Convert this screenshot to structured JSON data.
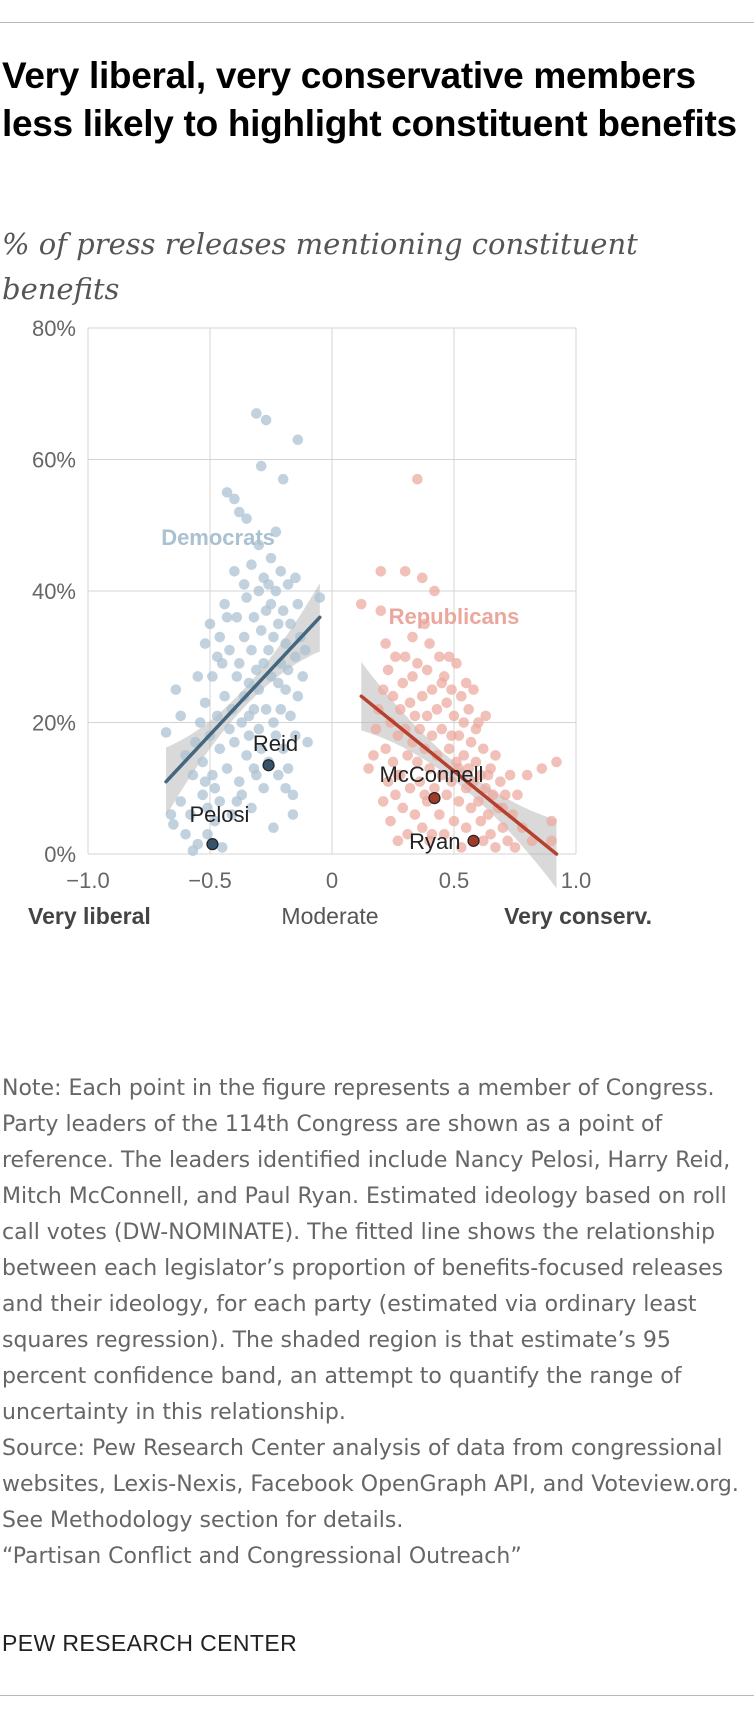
{
  "title": "Very liberal, very conservative members less likely to highlight constituent benefits",
  "subtitle": "% of press releases mentioning constituent benefits",
  "chart_data": {
    "type": "scatter",
    "title": "Very liberal, very conservative members less likely to highlight constituent benefits",
    "ylabel": "% of press releases mentioning constituent benefits",
    "xlabel": "",
    "xlim": [
      -1.0,
      1.0
    ],
    "ylim": [
      0,
      80
    ],
    "x_ticks": [
      -1.0,
      -0.5,
      0,
      0.5,
      1.0
    ],
    "x_tick_labels": [
      "−1.0",
      "−0.5",
      "0",
      "0.5",
      "1.0"
    ],
    "y_ticks": [
      0,
      20,
      40,
      60,
      80
    ],
    "y_tick_labels": [
      "0%",
      "20%",
      "40%",
      "60%",
      "80%"
    ],
    "axis_anchor_labels": {
      "left": "Very liberal",
      "center": "Moderate",
      "right": "Very conserv."
    },
    "grid": true,
    "colors": {
      "dem_points": "#a9c1d1",
      "dem_line": "#44677f",
      "rep_points": "#eba79d",
      "rep_line": "#b5412e",
      "band": "#b4b4b4",
      "leader_dem": "#35536a",
      "leader_rep": "#a23a2a"
    },
    "series": [
      {
        "name": "Democrats",
        "label_pos": [
          -0.7,
          47
        ],
        "points": [
          [
            -0.68,
            18.5
          ],
          [
            -0.66,
            6
          ],
          [
            -0.65,
            4.5
          ],
          [
            -0.64,
            25
          ],
          [
            -0.62,
            8
          ],
          [
            -0.6,
            15
          ],
          [
            -0.6,
            3
          ],
          [
            -0.58,
            6
          ],
          [
            -0.57,
            12
          ],
          [
            -0.56,
            17
          ],
          [
            -0.55,
            27
          ],
          [
            -0.55,
            1.5
          ],
          [
            -0.54,
            20
          ],
          [
            -0.53,
            9
          ],
          [
            -0.53,
            14
          ],
          [
            -0.52,
            32
          ],
          [
            -0.52,
            23
          ],
          [
            -0.51,
            7
          ],
          [
            -0.51,
            3
          ],
          [
            -0.5,
            35
          ],
          [
            -0.5,
            18
          ],
          [
            -0.49,
            27
          ],
          [
            -0.49,
            12
          ],
          [
            -0.48,
            10
          ],
          [
            -0.48,
            5
          ],
          [
            -0.47,
            30
          ],
          [
            -0.47,
            21
          ],
          [
            -0.46,
            16
          ],
          [
            -0.46,
            8
          ],
          [
            -0.45,
            1
          ],
          [
            -0.45,
            29
          ],
          [
            -0.44,
            24
          ],
          [
            -0.44,
            38
          ],
          [
            -0.43,
            55
          ],
          [
            -0.43,
            13
          ],
          [
            -0.42,
            31
          ],
          [
            -0.42,
            19
          ],
          [
            -0.41,
            22
          ],
          [
            -0.41,
            6
          ],
          [
            -0.4,
            54
          ],
          [
            -0.4,
            43
          ],
          [
            -0.4,
            17
          ],
          [
            -0.39,
            36
          ],
          [
            -0.39,
            27
          ],
          [
            -0.38,
            11
          ],
          [
            -0.38,
            52
          ],
          [
            -0.38,
            29
          ],
          [
            -0.37,
            20
          ],
          [
            -0.37,
            9
          ],
          [
            -0.36,
            41
          ],
          [
            -0.36,
            24
          ],
          [
            -0.36,
            33
          ],
          [
            -0.35,
            15
          ],
          [
            -0.35,
            51
          ],
          [
            -0.35,
            39
          ],
          [
            -0.34,
            26
          ],
          [
            -0.34,
            18
          ],
          [
            -0.33,
            44
          ],
          [
            -0.33,
            31
          ],
          [
            -0.33,
            7
          ],
          [
            -0.32,
            22
          ],
          [
            -0.32,
            36
          ],
          [
            -0.32,
            13
          ],
          [
            -0.31,
            67
          ],
          [
            -0.31,
            28
          ],
          [
            -0.3,
            47
          ],
          [
            -0.3,
            40
          ],
          [
            -0.3,
            19
          ],
          [
            -0.3,
            25
          ],
          [
            -0.29,
            59
          ],
          [
            -0.29,
            34
          ],
          [
            -0.29,
            16
          ],
          [
            -0.28,
            42
          ],
          [
            -0.28,
            29
          ],
          [
            -0.28,
            10
          ],
          [
            -0.27,
            66
          ],
          [
            -0.27,
            37
          ],
          [
            -0.27,
            22
          ],
          [
            -0.26,
            31
          ],
          [
            -0.26,
            14
          ],
          [
            -0.25,
            45
          ],
          [
            -0.25,
            27
          ],
          [
            -0.25,
            38
          ],
          [
            -0.24,
            33
          ],
          [
            -0.24,
            20
          ],
          [
            -0.24,
            4
          ],
          [
            -0.23,
            49
          ],
          [
            -0.23,
            40
          ],
          [
            -0.23,
            18
          ],
          [
            -0.22,
            26
          ],
          [
            -0.22,
            35
          ],
          [
            -0.22,
            12
          ],
          [
            -0.21,
            43
          ],
          [
            -0.21,
            29
          ],
          [
            -0.21,
            22
          ],
          [
            -0.2,
            57
          ],
          [
            -0.2,
            37
          ],
          [
            -0.2,
            16
          ],
          [
            -0.19,
            32
          ],
          [
            -0.19,
            25
          ],
          [
            -0.18,
            41
          ],
          [
            -0.18,
            28
          ],
          [
            -0.18,
            13
          ],
          [
            -0.17,
            35
          ],
          [
            -0.17,
            21
          ],
          [
            -0.16,
            9
          ],
          [
            -0.15,
            42
          ],
          [
            -0.15,
            30
          ],
          [
            -0.15,
            18
          ],
          [
            -0.14,
            63
          ],
          [
            -0.14,
            38
          ],
          [
            -0.14,
            24
          ],
          [
            -0.13,
            33
          ],
          [
            -0.12,
            27
          ],
          [
            -0.11,
            31
          ],
          [
            -0.1,
            17
          ],
          [
            -0.05,
            39
          ],
          [
            -0.57,
            0.5
          ],
          [
            -0.52,
            11
          ],
          [
            -0.62,
            21
          ],
          [
            -0.46,
            33
          ],
          [
            -0.34,
            21
          ],
          [
            -0.26,
            41
          ],
          [
            -0.19,
            10
          ],
          [
            -0.39,
            8
          ],
          [
            -0.31,
            12
          ],
          [
            -0.43,
            36
          ],
          [
            -0.16,
            6
          ]
        ],
        "fit": {
          "x": [
            -0.68,
            -0.05
          ],
          "y": [
            11,
            36
          ]
        },
        "leader": {
          "name": "Pelosi",
          "x": -0.49,
          "y": 1.5
        }
      },
      {
        "name": "Republicans",
        "label_pos": [
          0.5,
          35
        ],
        "points": [
          [
            0.12,
            38
          ],
          [
            0.15,
            13
          ],
          [
            0.17,
            15
          ],
          [
            0.18,
            19
          ],
          [
            0.19,
            22
          ],
          [
            0.2,
            43
          ],
          [
            0.2,
            37
          ],
          [
            0.21,
            8
          ],
          [
            0.21,
            25
          ],
          [
            0.22,
            32
          ],
          [
            0.22,
            16
          ],
          [
            0.23,
            11
          ],
          [
            0.23,
            28
          ],
          [
            0.24,
            20
          ],
          [
            0.24,
            5
          ],
          [
            0.25,
            24
          ],
          [
            0.25,
            14
          ],
          [
            0.26,
            9
          ],
          [
            0.26,
            30
          ],
          [
            0.27,
            18
          ],
          [
            0.27,
            2
          ],
          [
            0.28,
            22
          ],
          [
            0.28,
            12
          ],
          [
            0.29,
            26
          ],
          [
            0.29,
            7
          ],
          [
            0.3,
            43
          ],
          [
            0.3,
            19
          ],
          [
            0.3,
            30
          ],
          [
            0.31,
            15
          ],
          [
            0.31,
            3
          ],
          [
            0.32,
            23
          ],
          [
            0.32,
            10
          ],
          [
            0.33,
            27
          ],
          [
            0.33,
            17
          ],
          [
            0.34,
            6
          ],
          [
            0.34,
            21
          ],
          [
            0.35,
            57
          ],
          [
            0.35,
            14
          ],
          [
            0.35,
            29
          ],
          [
            0.36,
            11
          ],
          [
            0.36,
            19
          ],
          [
            0.37,
            42
          ],
          [
            0.37,
            24
          ],
          [
            0.37,
            4
          ],
          [
            0.38,
            35
          ],
          [
            0.38,
            16
          ],
          [
            0.38,
            9
          ],
          [
            0.39,
            28
          ],
          [
            0.39,
            21
          ],
          [
            0.4,
            13
          ],
          [
            0.4,
            32
          ],
          [
            0.4,
            2
          ],
          [
            0.41,
            18
          ],
          [
            0.41,
            25
          ],
          [
            0.42,
            10
          ],
          [
            0.42,
            40
          ],
          [
            0.43,
            22
          ],
          [
            0.43,
            15
          ],
          [
            0.44,
            30
          ],
          [
            0.44,
            6
          ],
          [
            0.45,
            19
          ],
          [
            0.45,
            12
          ],
          [
            0.46,
            27
          ],
          [
            0.46,
            3
          ],
          [
            0.47,
            23
          ],
          [
            0.47,
            9
          ],
          [
            0.48,
            30
          ],
          [
            0.48,
            16
          ],
          [
            0.49,
            25
          ],
          [
            0.49,
            11
          ],
          [
            0.5,
            21
          ],
          [
            0.5,
            5
          ],
          [
            0.51,
            29
          ],
          [
            0.51,
            14
          ],
          [
            0.52,
            18
          ],
          [
            0.52,
            8
          ],
          [
            0.53,
            24
          ],
          [
            0.53,
            1
          ],
          [
            0.54,
            15
          ],
          [
            0.54,
            20
          ],
          [
            0.55,
            10
          ],
          [
            0.55,
            4
          ],
          [
            0.56,
            22
          ],
          [
            0.56,
            13
          ],
          [
            0.57,
            17
          ],
          [
            0.57,
            7
          ],
          [
            0.58,
            11
          ],
          [
            0.58,
            2
          ],
          [
            0.59,
            19
          ],
          [
            0.59,
            14
          ],
          [
            0.6,
            8
          ],
          [
            0.6,
            20
          ],
          [
            0.61,
            5
          ],
          [
            0.61,
            12
          ],
          [
            0.62,
            16
          ],
          [
            0.62,
            2
          ],
          [
            0.63,
            10
          ],
          [
            0.63,
            21
          ],
          [
            0.64,
            6
          ],
          [
            0.65,
            13
          ],
          [
            0.65,
            3
          ],
          [
            0.66,
            9
          ],
          [
            0.67,
            15
          ],
          [
            0.67,
            1
          ],
          [
            0.68,
            7
          ],
          [
            0.69,
            11
          ],
          [
            0.7,
            4
          ],
          [
            0.71,
            9
          ],
          [
            0.72,
            2
          ],
          [
            0.73,
            12
          ],
          [
            0.74,
            6
          ],
          [
            0.75,
            1
          ],
          [
            0.76,
            9
          ],
          [
            0.78,
            4
          ],
          [
            0.8,
            12
          ],
          [
            0.82,
            2
          ],
          [
            0.86,
            13
          ],
          [
            0.9,
            5
          ],
          [
            0.92,
            14
          ],
          [
            0.9,
            2
          ],
          [
            0.45,
            26
          ],
          [
            0.33,
            33
          ],
          [
            0.52,
            13
          ],
          [
            0.41,
            3
          ],
          [
            0.58,
            25
          ],
          [
            0.64,
            12
          ],
          [
            0.27,
            12
          ],
          [
            0.39,
            8
          ],
          [
            0.49,
            18
          ],
          [
            0.55,
            26
          ],
          [
            0.7,
            7
          ]
        ],
        "fit": {
          "x": [
            0.12,
            0.92
          ],
          "y": [
            24,
            0
          ]
        },
        "leader": {
          "name": "McConnell",
          "x": 0.42,
          "y": 8.5
        }
      }
    ],
    "extra_leaders": [
      {
        "name": "Reid",
        "party": "Democrats",
        "x": -0.26,
        "y": 13.5
      },
      {
        "name": "Ryan",
        "party": "Republicans",
        "x": 0.58,
        "y": 2
      }
    ]
  },
  "note": "Note: Each point in the figure represents a member of Congress. Party leaders of the 114th Congress are shown as a point of reference. The leaders identified include Nancy Pelosi, Harry Reid, Mitch McConnell, and Paul Ryan. Estimated ideology based on roll call votes (DW-NOMINATE). The fitted line shows the relationship between each legislator’s proportion of benefits-focused releases and their ideology, for each party (estimated via ordinary least squares regression). The shaded region is that estimate’s 95 percent confidence band, an attempt to quantify the range of uncertainty in this relationship.",
  "source": "Source: Pew Research Center analysis of data from congressional websites, Lexis-Nexis, Facebook OpenGraph API, and Voteview.org. See Methodology section for details.",
  "report": "“Partisan Conflict and Congressional Outreach”",
  "brand": "PEW RESEARCH CENTER"
}
